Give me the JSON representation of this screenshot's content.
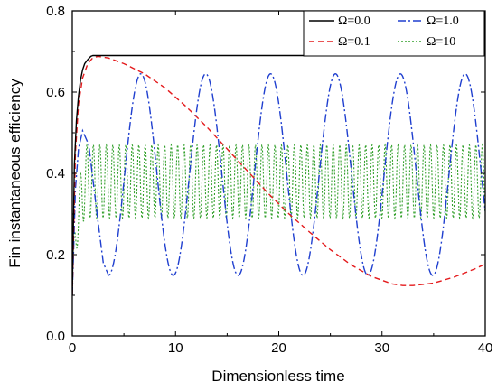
{
  "chart_data": {
    "type": "line",
    "title": "",
    "xlabel": "Dimensionless time",
    "ylabel": "Fin instantaneous efficiency",
    "xlim": [
      0,
      40
    ],
    "ylim": [
      0,
      0.8
    ],
    "xticks": [
      0,
      10,
      20,
      30,
      40
    ],
    "yticks": [
      0.0,
      0.2,
      0.4,
      0.6,
      0.8
    ],
    "ytick_labels": [
      "0.0",
      "0.2",
      "0.4",
      "0.6",
      "0.8"
    ],
    "xtick_labels": [
      "0",
      "10",
      "20",
      "30",
      "40"
    ],
    "grid": false,
    "legend": "top-right",
    "series": [
      {
        "name": "Ω=0.0",
        "color": "#000000",
        "dash": "solid",
        "x": [
          0,
          0.2,
          0.4,
          0.6,
          0.8,
          1.0,
          1.2,
          1.5,
          1.8,
          2.0,
          2.5,
          3,
          5,
          10,
          20,
          30,
          40
        ],
        "y": [
          0.1,
          0.42,
          0.53,
          0.59,
          0.63,
          0.655,
          0.67,
          0.68,
          0.688,
          0.69,
          0.69,
          0.69,
          0.69,
          0.69,
          0.69,
          0.69,
          0.69
        ]
      },
      {
        "name": "Ω=0.1",
        "color": "#e41a1c",
        "dash": "dashed",
        "x": [
          0,
          0.3,
          0.6,
          1.0,
          1.5,
          2.0,
          2.5,
          3.5,
          5,
          7,
          9,
          11,
          13,
          15,
          17,
          19,
          21,
          23,
          25,
          27,
          29,
          31,
          32,
          33,
          35,
          37,
          39,
          40
        ],
        "y": [
          0.1,
          0.45,
          0.57,
          0.635,
          0.67,
          0.685,
          0.688,
          0.684,
          0.67,
          0.645,
          0.61,
          0.565,
          0.515,
          0.46,
          0.405,
          0.35,
          0.3,
          0.255,
          0.212,
          0.175,
          0.146,
          0.128,
          0.124,
          0.124,
          0.13,
          0.145,
          0.165,
          0.177
        ]
      },
      {
        "name": "Ω=1.0",
        "color": "#1f3fcf",
        "dash": "dashdot",
        "formula": "damped-cosine",
        "period": 6.283,
        "center": 0.397,
        "amplitude": 0.248,
        "y_start": 0.1,
        "y_peak0": 0.505,
        "x_peak0": 1.0,
        "x_trough0": 3.5
      },
      {
        "name": "Ω=10",
        "color": "#33a02c",
        "dash": "dotted",
        "formula": "fast-oscillation",
        "period": 0.628,
        "center": 0.38,
        "amplitude": 0.09,
        "y_start": 0.1
      }
    ]
  }
}
